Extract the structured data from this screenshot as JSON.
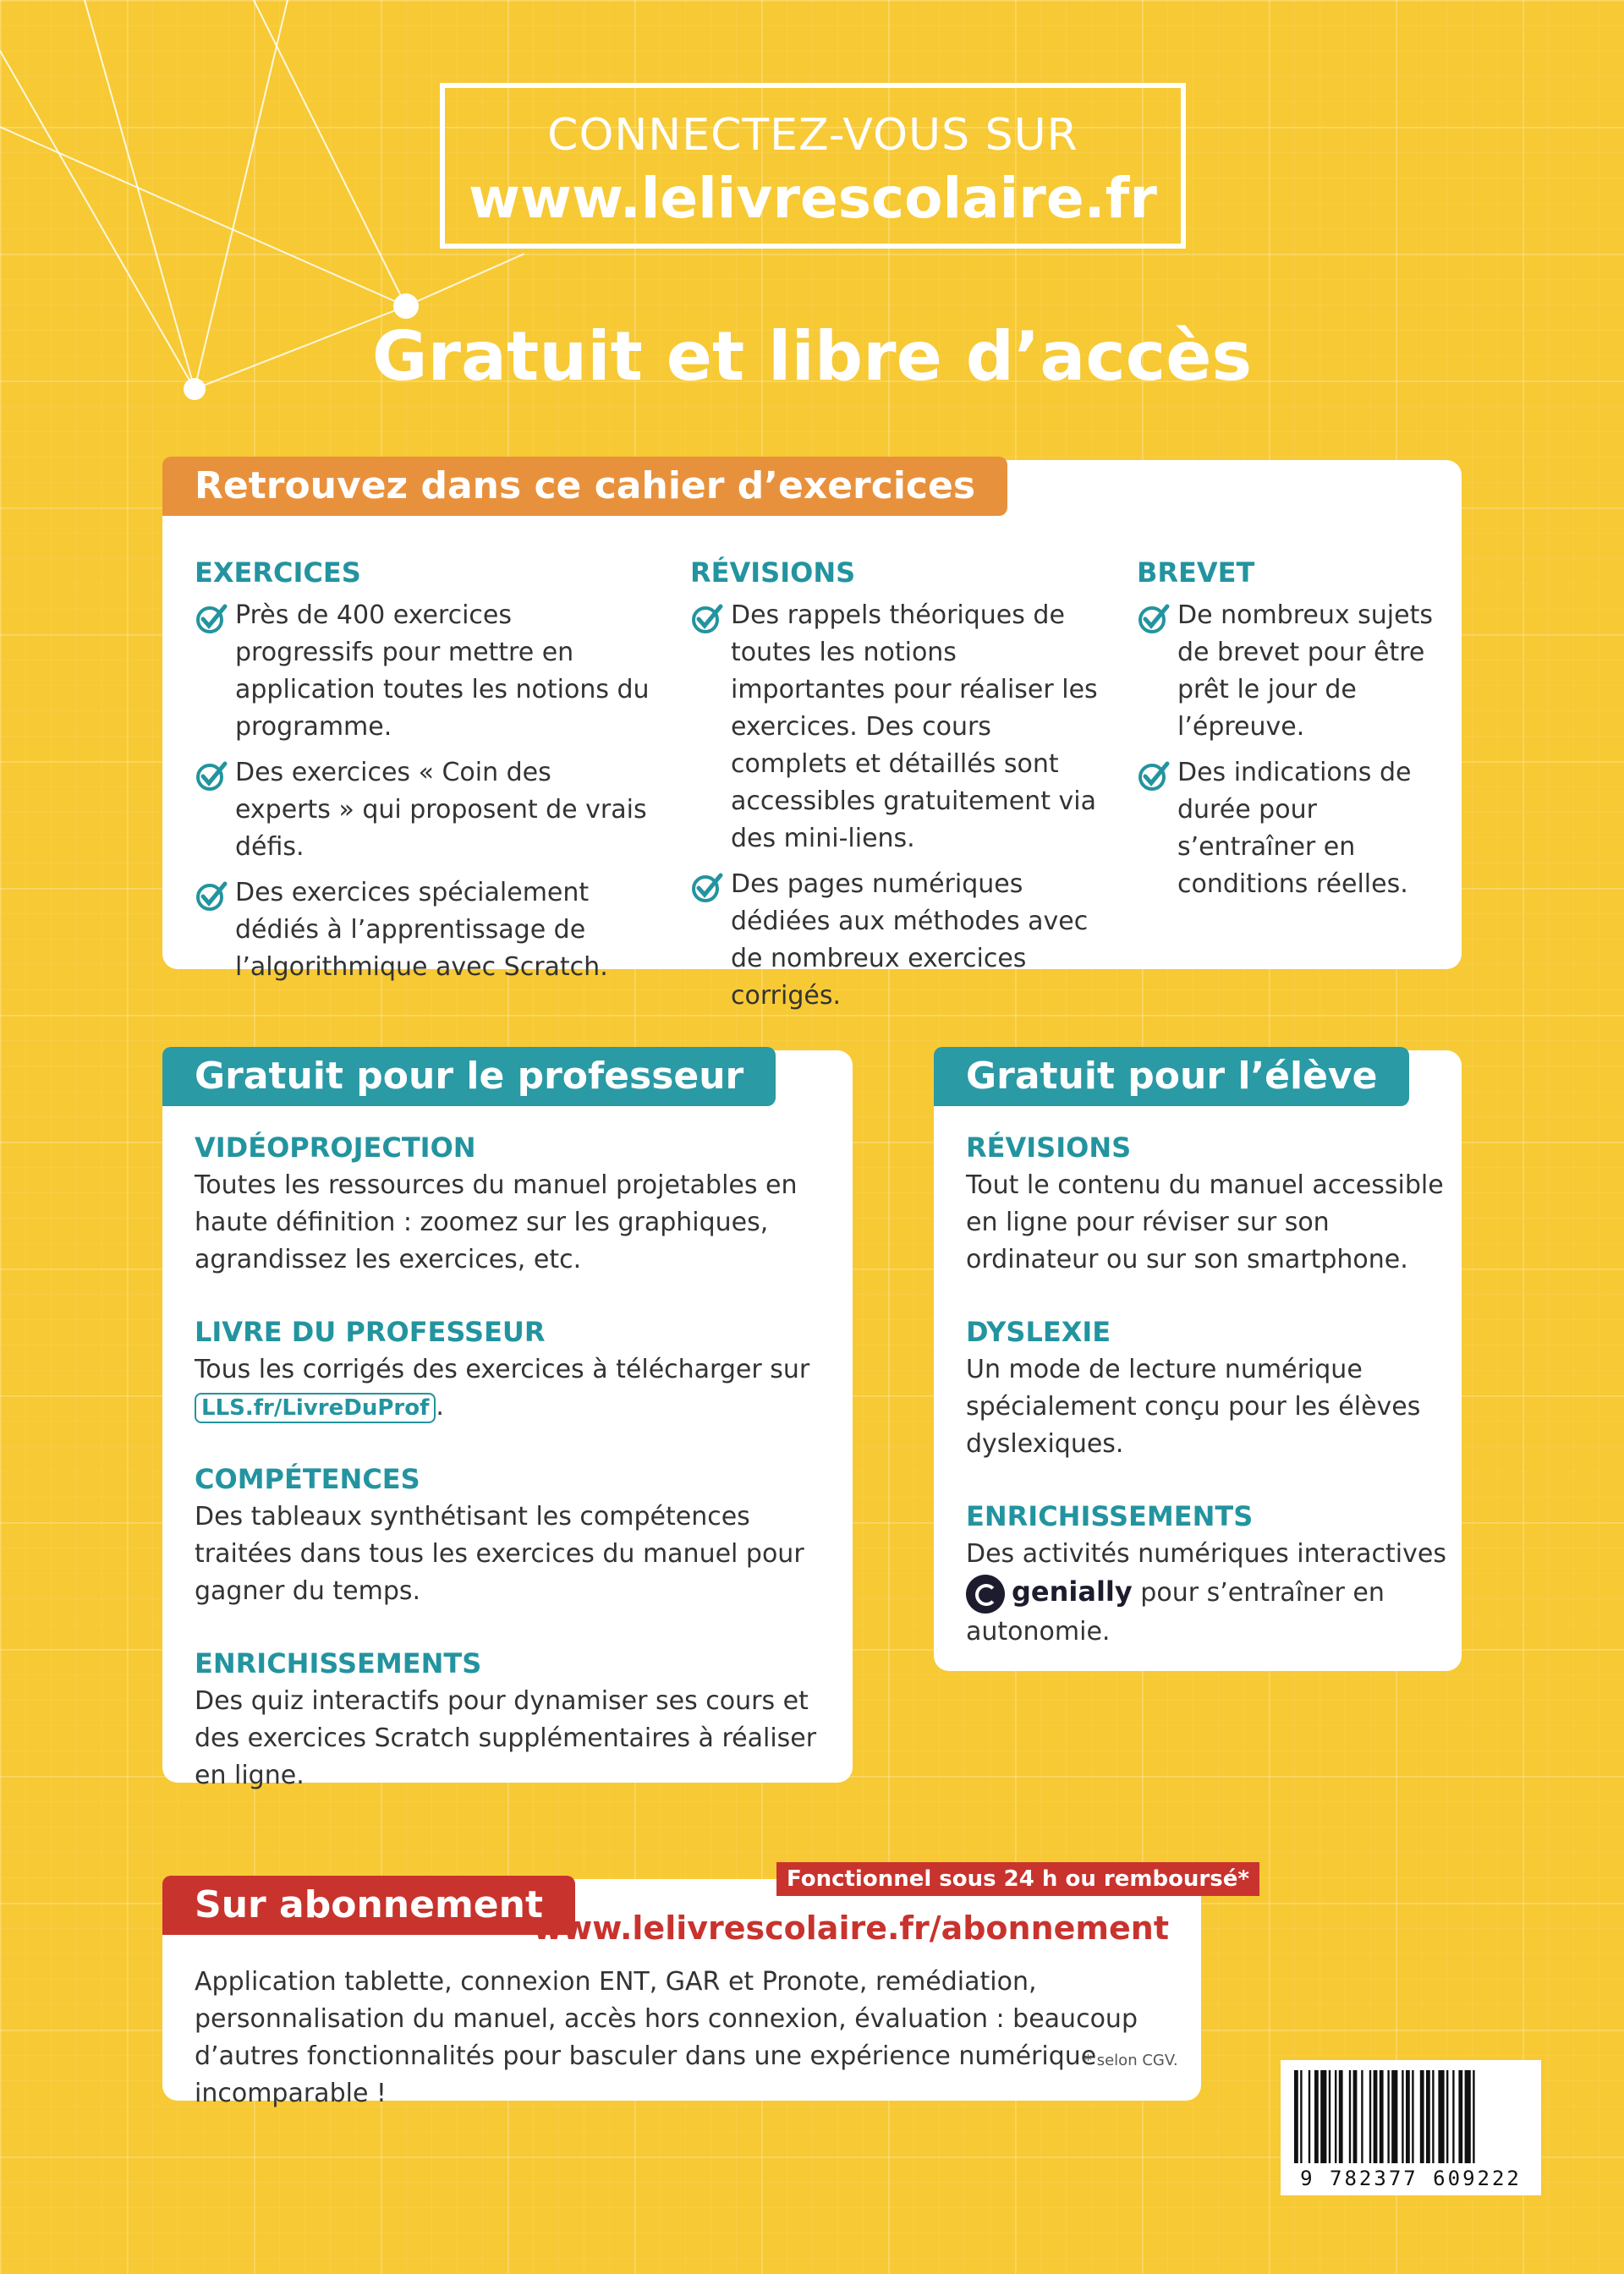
{
  "header": {
    "connect_label": "CONNECTEZ-VOUS SUR",
    "connect_url": "www.lelivrescolaire.fr",
    "title": "Gratuit et libre d’accès"
  },
  "cahier": {
    "tag": "Retrouvez dans ce cahier d’exercices",
    "columns": [
      {
        "heading": "EXERCICES",
        "items": [
          "Près de 400 exercices progressifs pour mettre en application toutes les notions du programme.",
          "Des exercices « Coin des experts » qui proposent de vrais défis.",
          "Des exercices spécialement dédiés à l’apprentissage de l’algorithmique avec Scratch."
        ]
      },
      {
        "heading": "RÉVISIONS",
        "items": [
          "Des rappels théoriques de toutes les notions importantes pour réaliser les exercices. Des cours complets et détaillés sont accessibles gratuitement via des mini-liens.",
          "Des pages numériques dédiées aux méthodes avec de nombreux exercices corrigés."
        ]
      },
      {
        "heading": "BREVET",
        "items": [
          "De nombreux sujets de brevet pour être prêt le jour de l’épreuve.",
          "Des indications de durée pour s’entraîner en conditions réelles."
        ]
      }
    ]
  },
  "professeur": {
    "tag": "Gratuit pour le professeur",
    "sections": [
      {
        "heading": "VIDÉOPROJECTION",
        "text": "Toutes les ressources du manuel projetables en haute définition : zoomez sur les graphiques, agrandissez les exercices, etc."
      },
      {
        "heading": "LIVRE DU PROFESSEUR",
        "text": "Tous les corrigés des exercices à télécharger sur",
        "link": "LLS.fr/LivreDuProf",
        "suffix": "."
      },
      {
        "heading": "COMPÉTENCES",
        "text": "Des tableaux synthétisant les compétences traitées dans tous les exercices du manuel pour gagner du temps."
      },
      {
        "heading": "ENRICHISSEMENTS",
        "text": "Des quiz interactifs pour dynamiser ses cours et des exercices Scratch supplémentaires à réaliser en ligne."
      }
    ]
  },
  "eleve": {
    "tag": "Gratuit pour l’élève",
    "sections": [
      {
        "heading": "RÉVISIONS",
        "text": "Tout le contenu du manuel accessible en ligne pour réviser sur son ordinateur ou sur son smartphone."
      },
      {
        "heading": "DYSLEXIE",
        "text": "Un mode de lecture numérique spécialement conçu pour les élèves dyslexiques."
      },
      {
        "heading": "ENRICHISSEMENTS",
        "text_before": "Des activités numériques interactives",
        "brand": "genially",
        "text_after": "pour s’entraîner en autonomie."
      }
    ]
  },
  "abonnement": {
    "tag": "Sur abonnement",
    "badge": "Fonctionnel sous 24 h ou remboursé*",
    "url": "www.lelivrescolaire.fr/abonnement",
    "text": "Application tablette, connexion ENT, GAR et Pronote, remédiation, personnalisation du manuel, accès hors connexion, évaluation : beaucoup d’autres fonctionnalités pour basculer dans une expérience numérique incomparable !",
    "footnote": "* selon CGV."
  },
  "barcode": {
    "number": "9 782377 609222"
  },
  "colors": {
    "background": "#f7c934",
    "orange": "#e8913c",
    "teal": "#2a9aa5",
    "red": "#c8332e"
  }
}
